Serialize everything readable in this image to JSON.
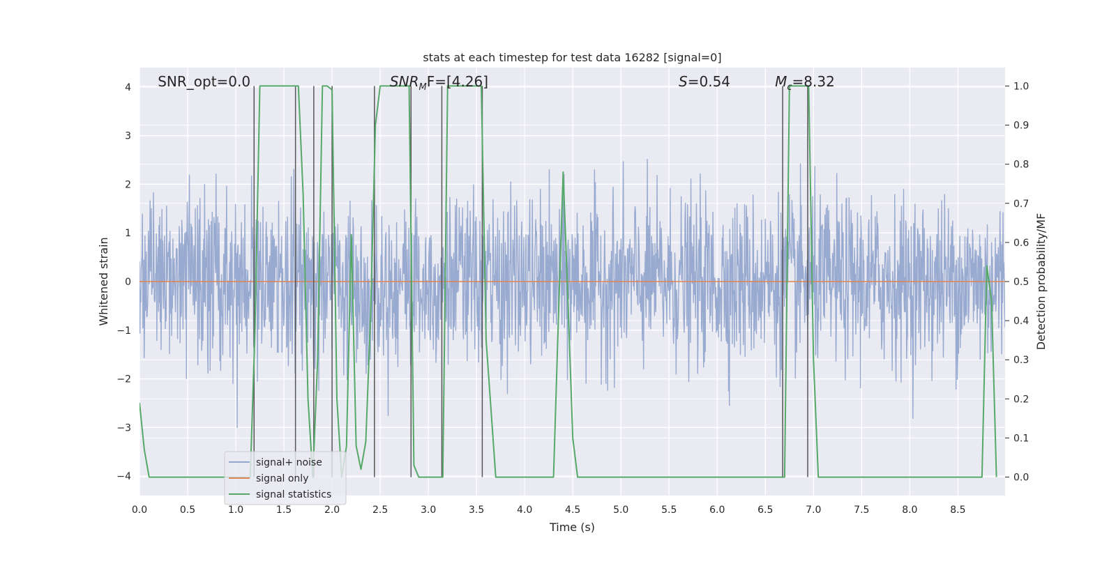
{
  "chart_data": {
    "type": "line",
    "title": "stats at each timestep for test data 16282 [signal=0]",
    "xlabel": "Time (s)",
    "ylabel": "Whitened strain",
    "ylabel_right": "Detection probability/MF",
    "xlim": [
      0.0,
      8.99
    ],
    "ylim": [
      -4.4,
      4.4
    ],
    "ylim_right": [
      -0.047,
      1.047
    ],
    "x_ticks": [
      "0.0",
      "0.5",
      "1.0",
      "1.5",
      "2.0",
      "2.5",
      "3.0",
      "3.5",
      "4.0",
      "4.5",
      "5.0",
      "5.5",
      "6.0",
      "6.5",
      "7.0",
      "7.5",
      "8.0",
      "8.5"
    ],
    "y_ticks": [
      "−4",
      "−3",
      "−2",
      "−1",
      "0",
      "1",
      "2",
      "3",
      "4"
    ],
    "y_ticks_right": [
      "0.0",
      "0.1",
      "0.2",
      "0.3",
      "0.4",
      "0.5",
      "0.6",
      "0.7",
      "0.8",
      "0.9",
      "1.0"
    ],
    "grid": true,
    "legend_position": "lower-left",
    "annotations": [
      {
        "text": "SNR_opt=0.0",
        "x": 0.19,
        "style": "normal"
      },
      {
        "text_main": "SNR",
        "text_sub": "M",
        "text_rest": "F=[4.26]",
        "x": 2.6,
        "style": "italic-sub"
      },
      {
        "text_main": "S",
        "text_rest": "=0.54",
        "x": 5.6,
        "style": "italic"
      },
      {
        "text_main": "M",
        "text_sub": "c",
        "text_rest": "=8.32",
        "x": 6.6,
        "style": "italic-sub"
      }
    ],
    "series": [
      {
        "name": "signal+ noise",
        "color": "#93a6cd",
        "kind": "noise",
        "samples": 2048,
        "std": 0.85,
        "tick_range": [
          -4.4,
          3.9
        ]
      },
      {
        "name": "signal only",
        "color": "#dd8452",
        "kind": "line",
        "x": [
          0.0,
          8.99
        ],
        "y": [
          0.0,
          0.0
        ]
      },
      {
        "name": "signal statistics",
        "color": "#55a868",
        "axis": "right",
        "kind": "line",
        "x": [
          0.0,
          0.05,
          0.1,
          1.15,
          1.2,
          1.25,
          1.65,
          1.7,
          1.75,
          1.8,
          1.85,
          1.9,
          1.95,
          2.0,
          2.05,
          2.1,
          2.15,
          2.2,
          2.25,
          2.3,
          2.35,
          2.4,
          2.45,
          2.5,
          2.55,
          2.8,
          2.85,
          2.9,
          2.95,
          3.1,
          3.15,
          3.2,
          3.55,
          3.6,
          3.7,
          3.75,
          4.25,
          4.3,
          4.35,
          4.4,
          4.45,
          4.5,
          4.55,
          6.65,
          6.7,
          6.75,
          6.95,
          7.0,
          7.05,
          8.75,
          8.8,
          8.85,
          8.9
        ],
        "y": [
          0.19,
          0.07,
          0.0,
          0.0,
          0.38,
          1.0,
          1.0,
          0.72,
          0.2,
          0.0,
          0.3,
          1.0,
          1.0,
          0.99,
          0.2,
          0.0,
          0.08,
          0.62,
          0.08,
          0.02,
          0.09,
          0.41,
          0.9,
          1.0,
          1.0,
          1.0,
          0.03,
          0.0,
          0.0,
          0.0,
          0.0,
          1.0,
          1.0,
          0.35,
          0.0,
          0.0,
          0.0,
          0.0,
          0.4,
          0.78,
          0.45,
          0.1,
          0.0,
          0.0,
          0.0,
          1.0,
          1.0,
          0.3,
          0.0,
          0.0,
          0.54,
          0.45,
          0.0
        ]
      }
    ],
    "vertical_markers": [
      {
        "x": 1.19,
        "axis": "right",
        "y_top": 1.0
      },
      {
        "x": 1.62,
        "axis": "right",
        "y_top": 1.0
      },
      {
        "x": 1.81,
        "axis": "right",
        "y_top": 1.0
      },
      {
        "x": 2.0,
        "axis": "right",
        "y_top": 1.0
      },
      {
        "x": 2.44,
        "axis": "right",
        "y_top": 1.0
      },
      {
        "x": 2.82,
        "axis": "right",
        "y_top": 1.0
      },
      {
        "x": 3.14,
        "axis": "right",
        "y_top": 1.0
      },
      {
        "x": 3.56,
        "axis": "right",
        "y_top": 1.0
      },
      {
        "x": 6.68,
        "axis": "right",
        "y_top": 1.0
      },
      {
        "x": 6.94,
        "axis": "right",
        "y_top": 1.0
      }
    ],
    "colors": {
      "plot_background": "#eaeaf2",
      "grid": "#ffffff",
      "marker_line": "#555555",
      "text": "#262626"
    }
  }
}
